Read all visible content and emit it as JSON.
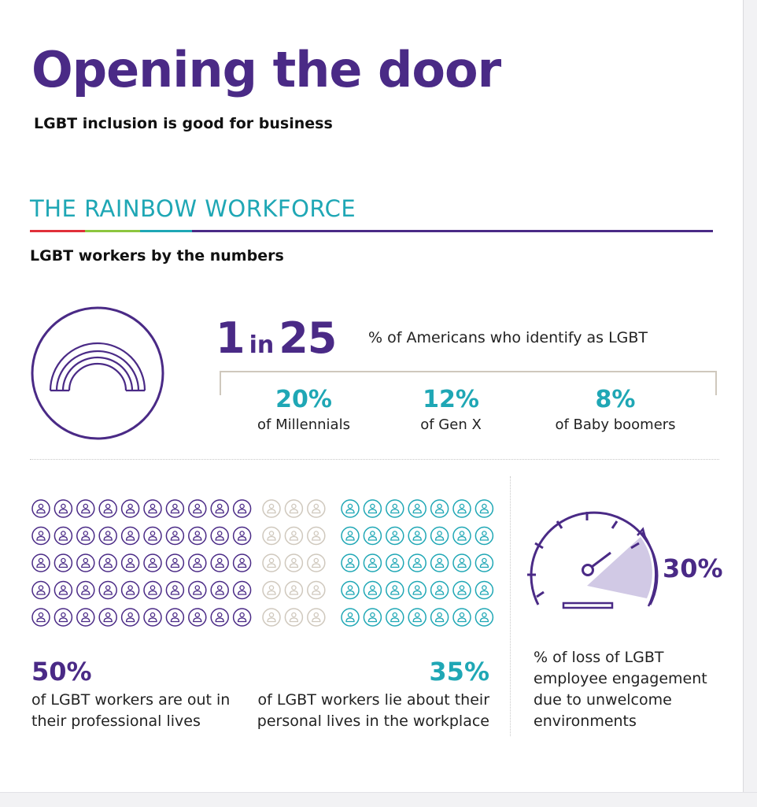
{
  "header": {
    "title": "Opening the door",
    "subtitle": "LGBT inclusion is good for business"
  },
  "section": {
    "heading": "THE RAINBOW WORKFORCE",
    "subheading": "LGBT workers by the numbers",
    "rule_colors": [
      "#e0303a",
      "#8dc63f",
      "#1fa7b5",
      "#4a2a86"
    ]
  },
  "ratio": {
    "left": "1",
    "middle": "in",
    "right": "25",
    "description": "% of Americans who identify as LGBT"
  },
  "generations": [
    {
      "percent": "20%",
      "label": "of Millennials"
    },
    {
      "percent": "12%",
      "label": "of Gen X"
    },
    {
      "percent": "8%",
      "label": "of Baby boomers"
    }
  ],
  "people_grid": {
    "rows": 5,
    "groups": [
      {
        "columns": 10,
        "color": "#4a2a86"
      },
      {
        "columns": 3,
        "color": "#cfc8bd"
      },
      {
        "columns": 7,
        "color": "#1fa7b5"
      }
    ]
  },
  "stats": {
    "out": {
      "percent": "50%",
      "description": "of LGBT workers are out in their professional lives"
    },
    "lie": {
      "percent": "35%",
      "description": "of LGBT workers lie about their personal lives in the workplace"
    }
  },
  "gauge": {
    "percent": "30%",
    "value": 0.3,
    "description": "% of loss of LGBT employee engagement due to unwelcome environments"
  },
  "colors": {
    "purple": "#4a2a86",
    "teal": "#1fa7b5",
    "beige": "#cfc8bd"
  }
}
